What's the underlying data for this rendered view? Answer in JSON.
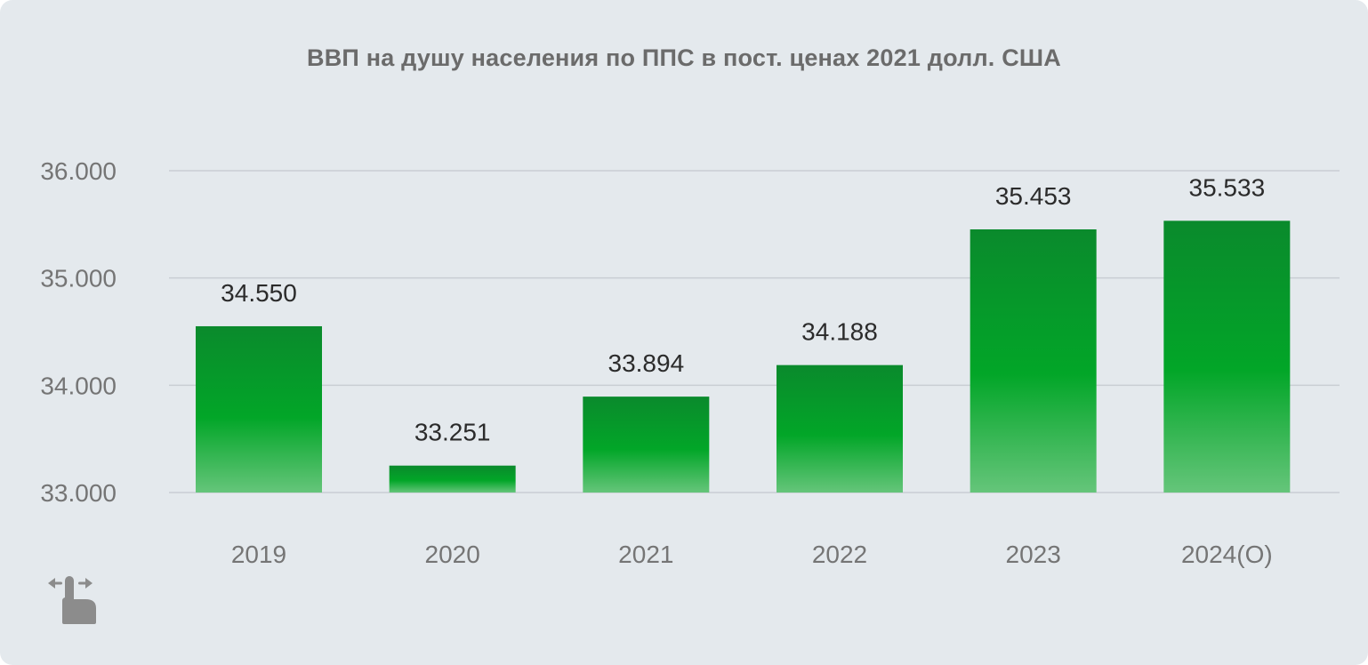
{
  "chart": {
    "title": "ВВП на душу населения по ППС в пост. ценах 2021 долл. США"
  },
  "chart_data": {
    "type": "bar",
    "title": "ВВП на душу населения по ППС в пост. ценах 2021 долл. США",
    "categories": [
      "2019",
      "2020",
      "2021",
      "2022",
      "2023",
      "2024(O)"
    ],
    "values": [
      34550,
      33251,
      33894,
      34188,
      35453,
      35533
    ],
    "value_labels": [
      "34.550",
      "33.251",
      "33.894",
      "34.188",
      "35.453",
      "35.533"
    ],
    "xlabel": "",
    "ylabel": "",
    "ylim": [
      33000,
      36000
    ],
    "yticks": [
      33000,
      34000,
      35000,
      36000
    ],
    "ytick_labels": [
      "33.000",
      "34.000",
      "35.000",
      "36.000"
    ],
    "grid": true,
    "legend": "none",
    "colors": {
      "bar_top": "#0a8a2c",
      "bar_mid": "#02a628",
      "bar_bottom": "#65c57a",
      "grid": "#c9ced3",
      "background": "#e4e9ed"
    }
  },
  "icons": {
    "swipe": "swipe-hand-icon"
  }
}
